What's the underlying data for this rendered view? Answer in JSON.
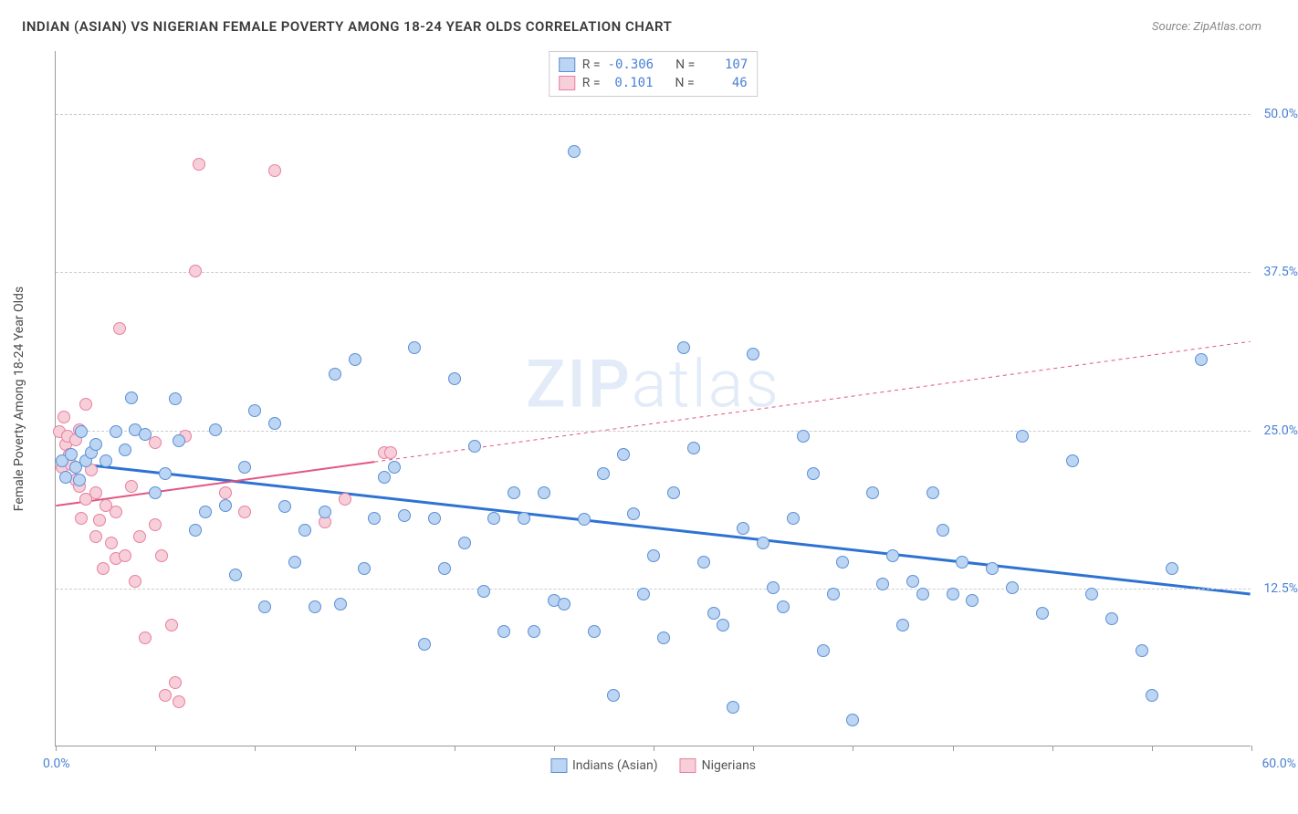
{
  "title": "INDIAN (ASIAN) VS NIGERIAN FEMALE POVERTY AMONG 18-24 YEAR OLDS CORRELATION CHART",
  "source": "Source: ZipAtlas.com",
  "watermark_a": "ZIP",
  "watermark_b": "atlas",
  "chart": {
    "type": "scatter",
    "xlim": [
      0,
      60
    ],
    "ylim": [
      0,
      55
    ],
    "x_min_label": "0.0%",
    "x_max_label": "60.0%",
    "xtick_positions": [
      0,
      5,
      10,
      15,
      20,
      25,
      30,
      35,
      40,
      45,
      50,
      55,
      60
    ],
    "ytick_labels": [
      {
        "v": 12.5,
        "label": "12.5%"
      },
      {
        "v": 25.0,
        "label": "25.0%"
      },
      {
        "v": 37.5,
        "label": "37.5%"
      },
      {
        "v": 50.0,
        "label": "50.0%"
      }
    ],
    "ylabel": "Female Poverty Among 18-24 Year Olds",
    "background_color": "#ffffff",
    "grid_color": "#cccccc",
    "axis_color": "#999999",
    "marker_radius": 7,
    "series": [
      {
        "name": "Indians (Asian)",
        "fill": "#bcd5f2",
        "stroke": "#5b8fd6",
        "stroke_width": 1,
        "R": "-0.306",
        "N": "107",
        "trend": {
          "x1": 0,
          "y1": 22.5,
          "x2": 60,
          "y2": 12.0,
          "color": "#2e72d2",
          "width": 3,
          "dash_after_x": 60
        },
        "points": [
          [
            0.3,
            22.5
          ],
          [
            0.5,
            21.2
          ],
          [
            0.8,
            23.0
          ],
          [
            1.0,
            22.0
          ],
          [
            1.2,
            21.0
          ],
          [
            1.3,
            24.8
          ],
          [
            1.5,
            22.5
          ],
          [
            1.8,
            23.2
          ],
          [
            2.0,
            23.8
          ],
          [
            2.5,
            22.5
          ],
          [
            3.0,
            24.8
          ],
          [
            3.5,
            23.4
          ],
          [
            3.8,
            27.5
          ],
          [
            4.0,
            25.0
          ],
          [
            4.5,
            24.6
          ],
          [
            5.0,
            20.0
          ],
          [
            5.5,
            21.5
          ],
          [
            6.0,
            27.4
          ],
          [
            6.2,
            24.1
          ],
          [
            7.0,
            17.0
          ],
          [
            7.5,
            18.5
          ],
          [
            8.0,
            25.0
          ],
          [
            8.5,
            19.0
          ],
          [
            9.0,
            13.5
          ],
          [
            9.5,
            22.0
          ],
          [
            10.0,
            26.5
          ],
          [
            10.5,
            11.0
          ],
          [
            11.0,
            25.5
          ],
          [
            11.5,
            18.9
          ],
          [
            12.0,
            14.5
          ],
          [
            12.5,
            17.0
          ],
          [
            13.0,
            11.0
          ],
          [
            13.5,
            18.5
          ],
          [
            14.0,
            29.4
          ],
          [
            14.3,
            11.2
          ],
          [
            15.0,
            30.5
          ],
          [
            15.5,
            14.0
          ],
          [
            16.0,
            18.0
          ],
          [
            16.5,
            21.2
          ],
          [
            17.0,
            22.0
          ],
          [
            17.5,
            18.2
          ],
          [
            18.0,
            31.5
          ],
          [
            18.5,
            8.0
          ],
          [
            19.0,
            18.0
          ],
          [
            19.5,
            14.0
          ],
          [
            20.0,
            29.0
          ],
          [
            20.5,
            16.0
          ],
          [
            21.0,
            23.7
          ],
          [
            21.5,
            12.2
          ],
          [
            22.0,
            18.0
          ],
          [
            22.5,
            9.0
          ],
          [
            23.0,
            20.0
          ],
          [
            23.5,
            18.0
          ],
          [
            24.0,
            9.0
          ],
          [
            24.5,
            20.0
          ],
          [
            25.0,
            11.5
          ],
          [
            25.5,
            11.2
          ],
          [
            26.0,
            47.0
          ],
          [
            26.5,
            17.9
          ],
          [
            27.0,
            9.0
          ],
          [
            27.5,
            21.5
          ],
          [
            28.0,
            4.0
          ],
          [
            28.5,
            23.0
          ],
          [
            29.0,
            18.3
          ],
          [
            29.5,
            12.0
          ],
          [
            30.0,
            15.0
          ],
          [
            30.5,
            8.5
          ],
          [
            31.0,
            20.0
          ],
          [
            31.5,
            31.5
          ],
          [
            32.0,
            23.5
          ],
          [
            32.5,
            14.5
          ],
          [
            33.0,
            10.5
          ],
          [
            33.5,
            9.5
          ],
          [
            34.0,
            3.0
          ],
          [
            34.5,
            17.2
          ],
          [
            35.0,
            31.0
          ],
          [
            35.5,
            16.0
          ],
          [
            36.0,
            12.5
          ],
          [
            36.5,
            11.0
          ],
          [
            37.0,
            18.0
          ],
          [
            37.5,
            24.5
          ],
          [
            38.0,
            21.5
          ],
          [
            38.5,
            7.5
          ],
          [
            39.0,
            12.0
          ],
          [
            39.5,
            14.5
          ],
          [
            40.0,
            2.0
          ],
          [
            41.0,
            20.0
          ],
          [
            41.5,
            12.8
          ],
          [
            42.0,
            15.0
          ],
          [
            42.5,
            9.5
          ],
          [
            43.0,
            13.0
          ],
          [
            43.5,
            12.0
          ],
          [
            44.0,
            20.0
          ],
          [
            44.5,
            17.0
          ],
          [
            45.0,
            12.0
          ],
          [
            45.5,
            14.5
          ],
          [
            46.0,
            11.5
          ],
          [
            47.0,
            14.0
          ],
          [
            48.0,
            12.5
          ],
          [
            48.5,
            24.5
          ],
          [
            49.5,
            10.5
          ],
          [
            51.0,
            22.5
          ],
          [
            52.0,
            12.0
          ],
          [
            53.0,
            10.0
          ],
          [
            54.5,
            7.5
          ],
          [
            55.0,
            4.0
          ],
          [
            56.0,
            14.0
          ],
          [
            57.5,
            30.5
          ]
        ]
      },
      {
        "name": "Nigerians",
        "fill": "#f6cfd9",
        "stroke": "#e97fa2",
        "stroke_width": 1,
        "R": "0.101",
        "N": "46",
        "trend": {
          "x1": 0,
          "y1": 19.0,
          "x2": 60,
          "y2": 32.0,
          "color": "#e35583",
          "width": 2,
          "dash_after_x": 16
        },
        "points": [
          [
            0.2,
            24.8
          ],
          [
            0.3,
            22.0
          ],
          [
            0.4,
            26.0
          ],
          [
            0.5,
            23.8
          ],
          [
            0.6,
            24.5
          ],
          [
            0.7,
            23.0
          ],
          [
            0.8,
            22.2
          ],
          [
            1.0,
            21.0
          ],
          [
            1.0,
            24.2
          ],
          [
            1.2,
            25.0
          ],
          [
            1.2,
            20.5
          ],
          [
            1.3,
            18.0
          ],
          [
            1.5,
            27.0
          ],
          [
            1.5,
            19.5
          ],
          [
            1.8,
            21.8
          ],
          [
            2.0,
            20.0
          ],
          [
            2.0,
            16.5
          ],
          [
            2.2,
            17.8
          ],
          [
            2.4,
            14.0
          ],
          [
            2.5,
            19.0
          ],
          [
            2.8,
            16.0
          ],
          [
            3.0,
            18.5
          ],
          [
            3.0,
            14.8
          ],
          [
            3.2,
            33.0
          ],
          [
            3.5,
            15.0
          ],
          [
            3.8,
            20.5
          ],
          [
            4.0,
            13.0
          ],
          [
            4.2,
            16.5
          ],
          [
            4.5,
            8.5
          ],
          [
            5.0,
            17.5
          ],
          [
            5.0,
            24.0
          ],
          [
            5.3,
            15.0
          ],
          [
            5.5,
            4.0
          ],
          [
            5.8,
            9.5
          ],
          [
            6.0,
            5.0
          ],
          [
            6.2,
            3.5
          ],
          [
            6.5,
            24.5
          ],
          [
            7.0,
            37.5
          ],
          [
            7.2,
            46.0
          ],
          [
            8.5,
            20.0
          ],
          [
            9.5,
            18.5
          ],
          [
            11.0,
            45.5
          ],
          [
            13.5,
            17.7
          ],
          [
            14.5,
            19.5
          ],
          [
            16.5,
            23.2
          ],
          [
            16.8,
            23.2
          ]
        ]
      }
    ]
  },
  "legend_top": {
    "r_prefix": "R =",
    "n_prefix": "N ="
  },
  "legend_bottom": [
    {
      "label": "Indians (Asian)",
      "fill": "#bcd5f2",
      "stroke": "#5b8fd6"
    },
    {
      "label": "Nigerians",
      "fill": "#f6cfd9",
      "stroke": "#e97fa2"
    }
  ],
  "tick_label_color": "#4a80d6"
}
